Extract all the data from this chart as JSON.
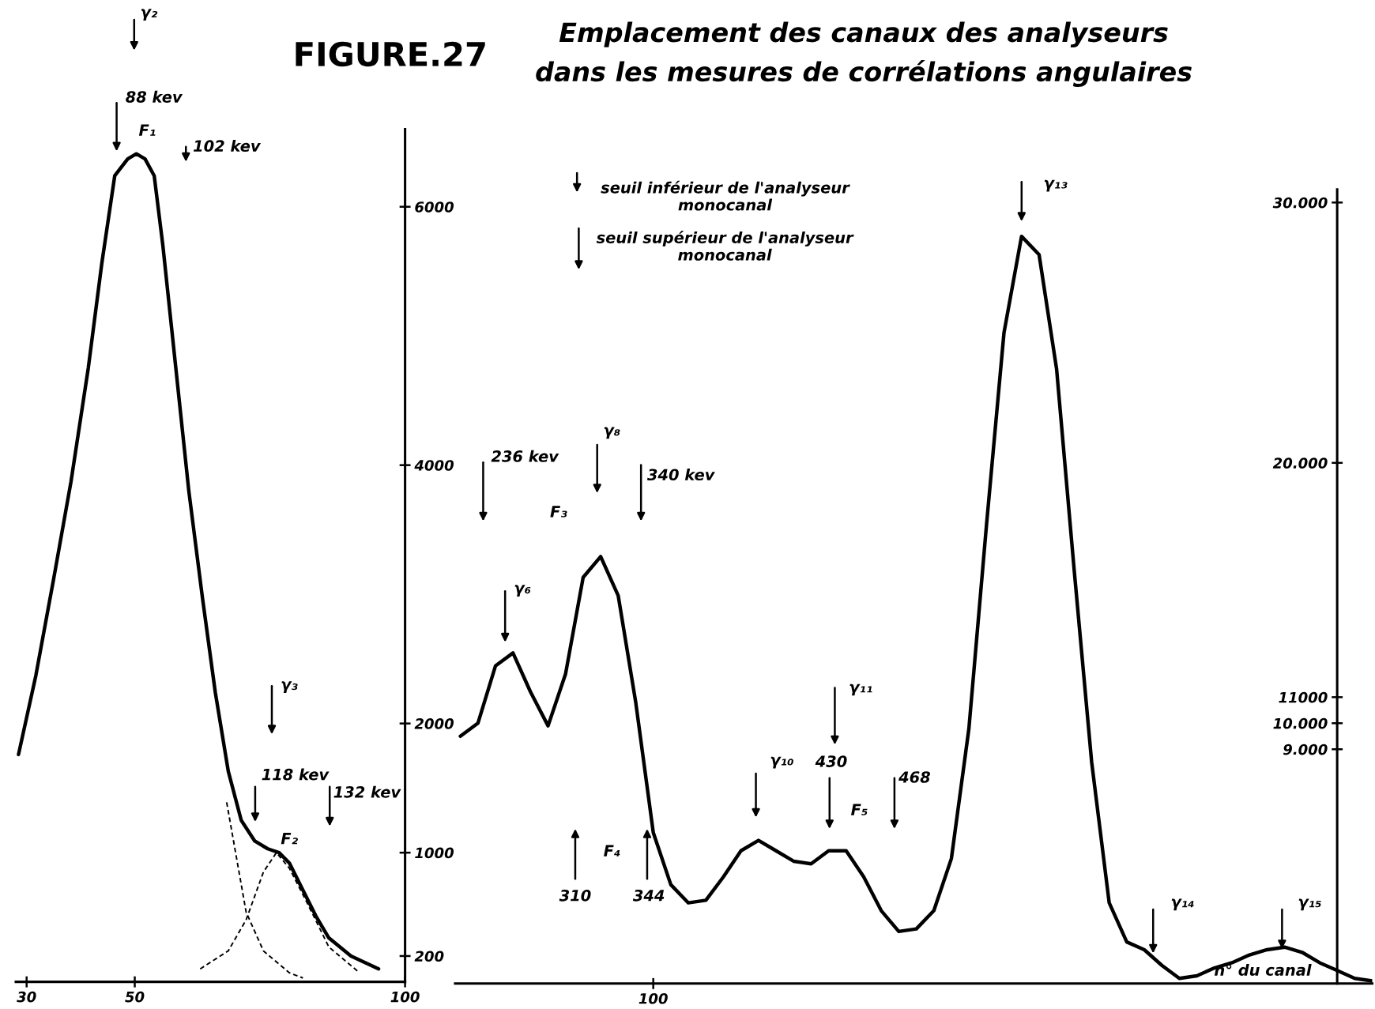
{
  "chart_data": [
    {
      "type": "line",
      "title": "FIGURE.27",
      "line_style": "solid",
      "grid": false,
      "xlim": [
        28,
        100
      ],
      "ylim": [
        0,
        6600
      ],
      "xticks": [
        30,
        50,
        100
      ],
      "yticks": [
        200,
        1000,
        2000,
        4000,
        6000
      ],
      "series": [
        {
          "color": "#000000",
          "x": [
            28.5,
            31.7,
            35.0,
            38.2,
            41.4,
            43.9,
            46.3,
            48.7,
            50.3,
            51.9,
            53.6,
            55.2,
            57.6,
            60.0,
            62.5,
            64.9,
            67.3,
            69.7,
            72.2,
            74.6,
            76.7,
            78.6,
            81.1,
            83.5,
            85.9,
            90.0,
            95.1
          ],
          "values": [
            1760,
            2370,
            3120,
            3870,
            4750,
            5560,
            6240,
            6370,
            6410,
            6370,
            6240,
            5700,
            4750,
            3800,
            2980,
            2240,
            1630,
            1250,
            1090,
            1030,
            1000,
            920,
            710,
            510,
            340,
            200,
            100
          ]
        },
        {
          "color": "#000000",
          "line_style": "dashed",
          "x": [
            67.0,
            70.6,
            73.8,
            78.6,
            81.1
          ],
          "values": [
            1390,
            540,
            240,
            70,
            30
          ]
        },
        {
          "color": "#000000",
          "line_style": "dashed",
          "x": [
            62.1,
            67.3,
            70.6,
            73.8,
            76.2,
            78.6,
            81.9,
            85.9,
            91.6
          ],
          "values": [
            100,
            240,
            480,
            850,
            1000,
            880,
            610,
            270,
            70
          ]
        }
      ],
      "annotations": [
        "γ₂",
        "88 kev",
        "F₁",
        "102 kev",
        "γ₃",
        "118 kev",
        "F₂",
        "132 kev"
      ]
    },
    {
      "type": "line",
      "title": "Emplacement des canaux des analyseurs\ndans les mesures de corrélations angulaires",
      "line_style": "solid",
      "grid": false,
      "categories": [
        null,
        null,
        null,
        null,
        null,
        null,
        null,
        null,
        null,
        null,
        null,
        "100",
        null,
        null,
        null,
        null,
        null,
        null,
        null,
        null,
        null,
        null,
        null,
        null,
        null,
        null,
        null,
        null,
        null,
        null,
        null,
        null,
        null,
        null,
        null,
        null,
        null,
        null,
        null,
        null,
        null,
        null,
        null,
        null,
        null,
        null,
        null,
        null,
        null,
        null,
        null,
        null,
        null
      ],
      "ylim": [
        0,
        30500
      ],
      "yticks": [
        {
          "value": 9000,
          "label": "9.000"
        },
        {
          "value": 10000,
          "label": "10.000"
        },
        {
          "value": 11000,
          "label": "11000"
        },
        {
          "value": 20000,
          "label": "20.000"
        },
        {
          "value": 30000,
          "label": "30.000"
        }
      ],
      "series": [
        {
          "color": "#000000",
          "values": [
            9500,
            10000,
            12200,
            12700,
            11200,
            9900,
            11900,
            15600,
            16400,
            14900,
            10800,
            5800,
            3800,
            3100,
            3200,
            4100,
            5100,
            5500,
            5100,
            4700,
            4600,
            5100,
            5100,
            4100,
            2800,
            2000,
            2100,
            2800,
            4800,
            9800,
            17600,
            25000,
            28700,
            28000,
            23600,
            15900,
            8500,
            3100,
            1600,
            1300,
            700,
            200,
            300,
            600,
            800,
            1100,
            1300,
            1400,
            1200,
            800,
            500,
            200,
            100
          ]
        }
      ],
      "annotations": [
        "236 kev",
        "F₃",
        "γ₈",
        "340 kev",
        "γ₆",
        "F₄",
        "310",
        "344",
        "γ₁₀",
        "γ₁₁",
        "430",
        "F₅",
        "468",
        "γ₁₃",
        "γ₁₄",
        "γ₁₅",
        "n° du canal",
        "seuil inférieur de l'analyseur\nmonocanal",
        "seuil supérieur de l'analyseur\nmonocanal"
      ]
    }
  ]
}
